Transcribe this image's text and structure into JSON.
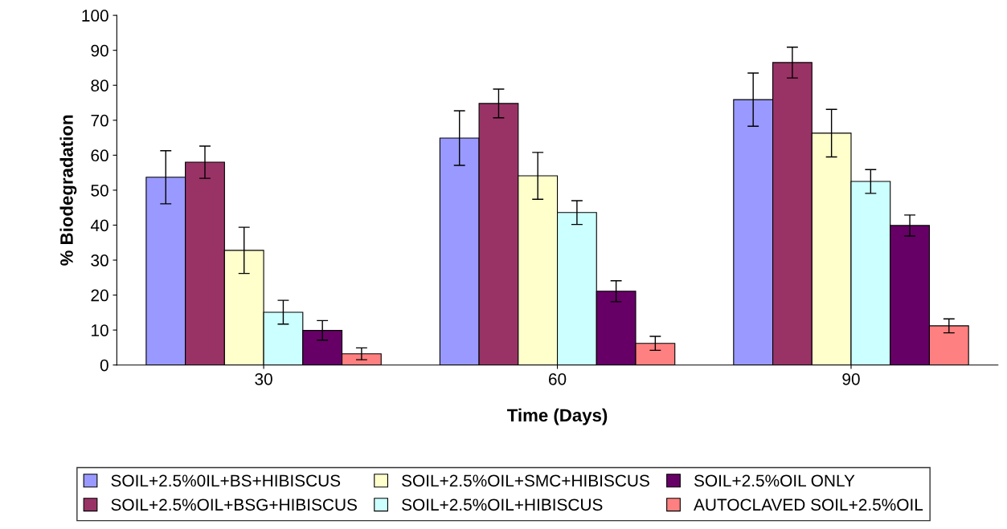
{
  "chart_data": {
    "type": "bar",
    "xlabel": "Time (Days)",
    "ylabel": "% Biodegradation",
    "categories": [
      "30",
      "60",
      "90"
    ],
    "series": [
      {
        "name": "SOIL+2.5%0IL+BS+HIBISCUS",
        "color": "#9999ff",
        "values": [
          53.7,
          64.9,
          75.9
        ],
        "errors": [
          7.6,
          7.8,
          7.6
        ]
      },
      {
        "name": "SOIL+2.5%OIL+BSG+HIBISCUS",
        "color": "#993366",
        "values": [
          58,
          74.8,
          86.5
        ],
        "errors": [
          4.6,
          4.1,
          4.4
        ]
      },
      {
        "name": "SOIL+2.5%OIL+SMC+HIBISCUS",
        "color": "#ffffcc",
        "values": [
          32.8,
          54.1,
          66.3
        ],
        "errors": [
          6.6,
          6.7,
          6.8
        ]
      },
      {
        "name": "SOIL+2.5%OIL+HIBISCUS",
        "color": "#ccffff",
        "values": [
          15.1,
          43.6,
          52.5
        ],
        "errors": [
          3.4,
          3.4,
          3.4
        ]
      },
      {
        "name": "SOIL+2.5%OIL ONLY",
        "color": "#660066",
        "values": [
          9.9,
          21.1,
          39.9
        ],
        "errors": [
          2.8,
          3.0,
          3.0
        ]
      },
      {
        "name": "AUTOCLAVED SOIL+2.5%OIL",
        "color": "#ff8080",
        "values": [
          3.2,
          6.2,
          11.2
        ],
        "errors": [
          1.7,
          2.0,
          2.0
        ]
      }
    ],
    "ylim": [
      0,
      100
    ],
    "yticks": [
      0,
      10,
      20,
      30,
      40,
      50,
      60,
      70,
      80,
      90,
      100
    ],
    "grid": false,
    "legend": "bottom"
  }
}
